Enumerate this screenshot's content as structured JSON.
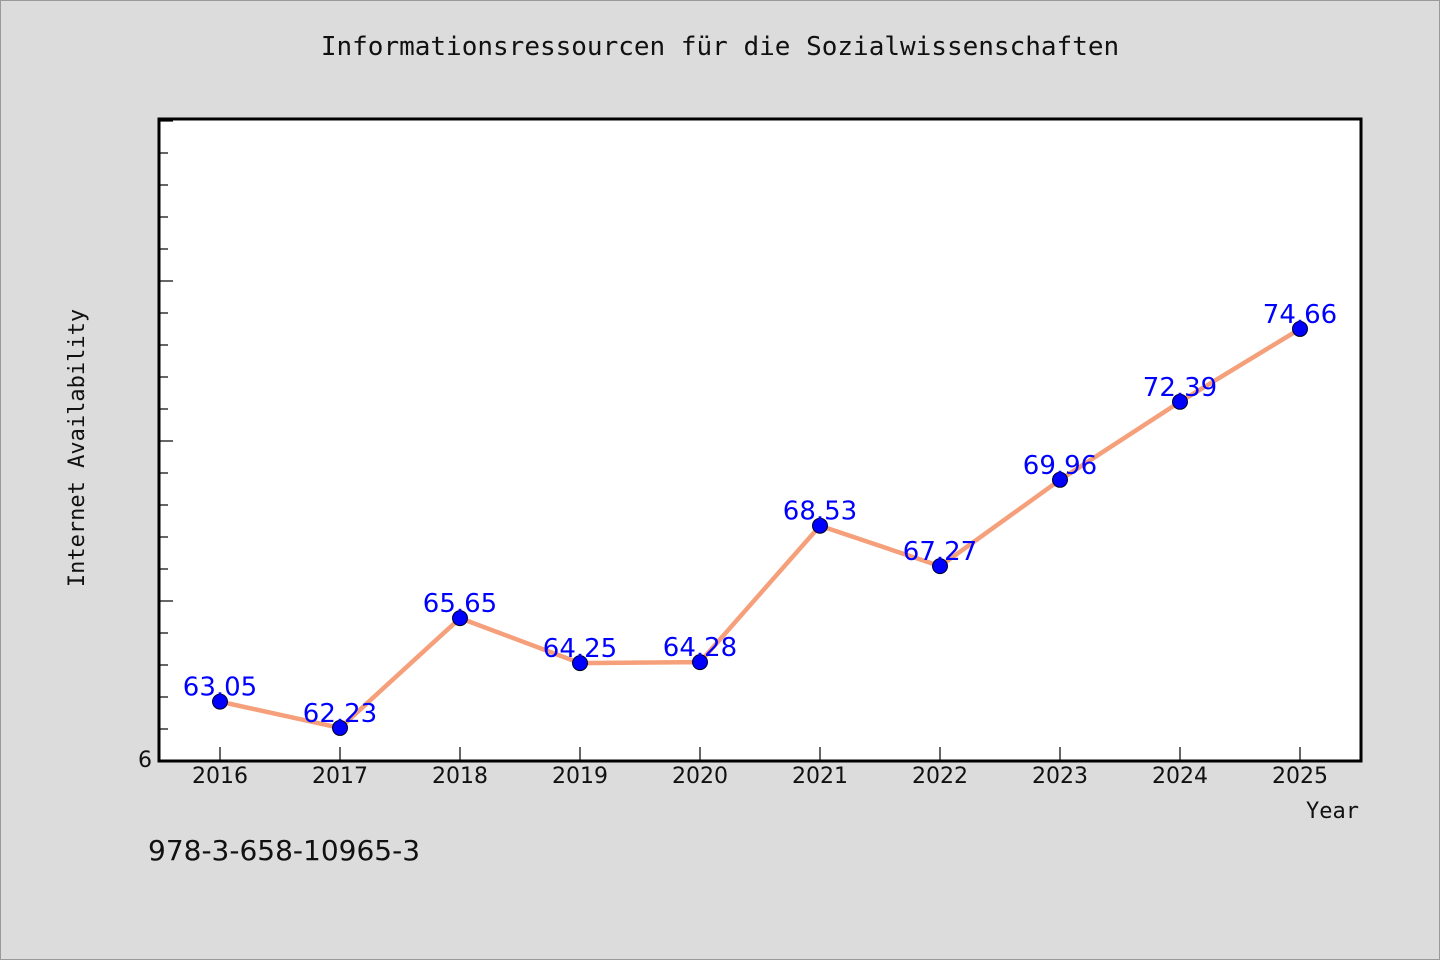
{
  "chart_data": {
    "type": "line",
    "title": "Informationsressourcen für die Sozialwissenschaften",
    "xlabel": "Year",
    "ylabel": "Internet Availability",
    "x": [
      "2016",
      "2017",
      "2018",
      "2019",
      "2020",
      "2021",
      "2022",
      "2023",
      "2024",
      "2025"
    ],
    "series": [
      {
        "values": [
          63.05,
          62.23,
          65.65,
          64.25,
          64.28,
          68.53,
          67.27,
          69.96,
          72.39,
          74.66
        ]
      }
    ],
    "data_labels": [
      "63.05",
      "62.23",
      "65.65",
      "64.25",
      "64.28",
      "68.53",
      "67.27",
      "69.96",
      "72.39",
      "74.66"
    ],
    "y_tick_labels": [
      "6"
    ],
    "ylim": [
      61.2,
      81.2
    ],
    "line_color": "#f5a07a",
    "marker_color": "#0000ff",
    "label_color": "#0000ff",
    "grid": false
  },
  "footnote": "978-3-658-10965-3"
}
